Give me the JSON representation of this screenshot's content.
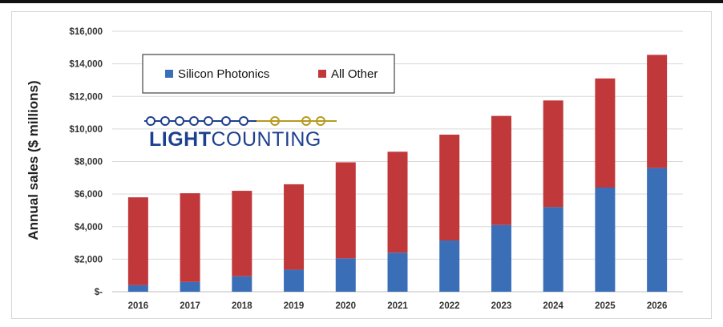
{
  "chart_data": {
    "type": "bar",
    "stacked": true,
    "categories": [
      "2016",
      "2017",
      "2018",
      "2019",
      "2020",
      "2021",
      "2022",
      "2023",
      "2024",
      "2025",
      "2026"
    ],
    "series": [
      {
        "name": "Silicon Photonics",
        "color": "#3a6fb8",
        "values": [
          400,
          600,
          950,
          1350,
          2050,
          2400,
          3150,
          4100,
          5200,
          6400,
          7600
        ]
      },
      {
        "name": "All Other",
        "color": "#c0383a",
        "values": [
          5400,
          5450,
          5250,
          5250,
          5900,
          6200,
          6500,
          6700,
          6550,
          6700,
          6950
        ]
      }
    ],
    "ylabel": "Annual sales ($ millions)",
    "xlabel": "",
    "ylim": [
      0,
      16000
    ],
    "yticks": [
      0,
      2000,
      4000,
      6000,
      8000,
      10000,
      12000,
      14000,
      16000
    ],
    "ytick_labels": [
      "$-",
      "$2,000",
      "$4,000",
      "$6,000",
      "$8,000",
      "$10,000",
      "$12,000",
      "$14,000",
      "$16,000"
    ],
    "grid": true,
    "legend_position": "top-left"
  },
  "logo": {
    "text_bold": "LIGHT",
    "text_rest": "COUNTING",
    "colors": {
      "blue": "#1d3f8f",
      "gold": "#b79a1f"
    }
  }
}
